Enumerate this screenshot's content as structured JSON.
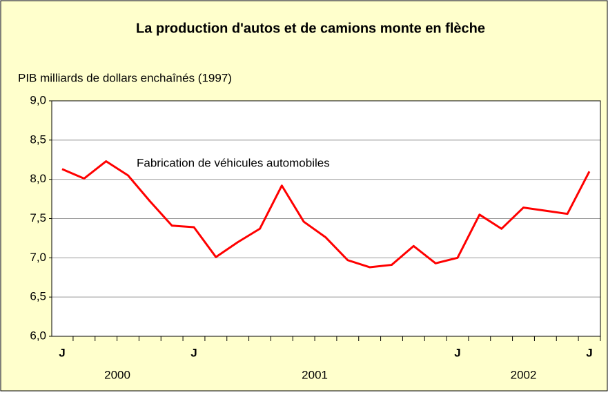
{
  "chart_data": {
    "type": "line",
    "title": "La production d'autos et de camions monte en flèche",
    "y_axis_label": "PIB milliards de dollars enchaînés (1997)",
    "annotation": "Fabrication de véhicules automobiles",
    "categories": [
      "J",
      null,
      null,
      null,
      null,
      null,
      "J",
      null,
      null,
      null,
      null,
      null,
      null,
      null,
      null,
      null,
      null,
      null,
      "J",
      null,
      null,
      null,
      null,
      null,
      "J"
    ],
    "year_labels": [
      "2000",
      "2001",
      "2002"
    ],
    "series": [
      {
        "name": "Fabrication de véhicules automobiles",
        "color": "#ff0000",
        "values": [
          8.13,
          8.01,
          8.23,
          8.05,
          7.72,
          7.41,
          7.39,
          7.01,
          7.2,
          7.37,
          7.92,
          7.46,
          7.26,
          6.97,
          6.88,
          6.91,
          7.15,
          6.93,
          7.0,
          7.55,
          7.37,
          7.64,
          7.6,
          7.56,
          8.1
        ]
      }
    ],
    "ylim": [
      6,
      9
    ],
    "yticks": [
      {
        "value": 6,
        "label": "6,0"
      },
      {
        "value": 6.5,
        "label": "6,5"
      },
      {
        "value": 7,
        "label": "7,0"
      },
      {
        "value": 7.5,
        "label": "7,5"
      },
      {
        "value": 8,
        "label": "8,0"
      },
      {
        "value": 8.5,
        "label": "8,5"
      },
      {
        "value": 9,
        "label": "9,0"
      }
    ],
    "grid": true
  }
}
